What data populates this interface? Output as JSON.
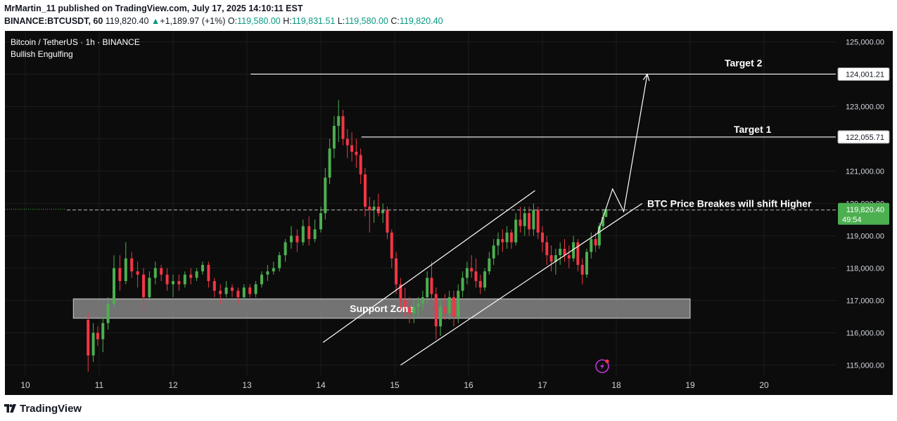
{
  "header": {
    "publisher_line": "MrMartin_11 published on TradingView.com, July 17, 2025 14:10:11 EST",
    "symbol": "BINANCE:BTCUSDT, 60",
    "last": "119,820.40",
    "change": "+1,189.97 (+1%)",
    "o_label": "O:",
    "o": "119,580.00",
    "h_label": "H:",
    "h": "119,831.51",
    "l_label": "L:",
    "l": "119,580.00",
    "c_label": "C:",
    "c": "119,820.40"
  },
  "legend": {
    "title": "Bitcoin / TetherUS · 1h · BINANCE",
    "indicator": "Bullish Engulfing"
  },
  "annotations": {
    "target1": "Target 1",
    "target2": "Target 2",
    "breakout": "BTC Price Breakes will shift Higher",
    "support_zone": "Support Zone"
  },
  "price_tags": {
    "target2": "124,001.21",
    "target1": "122,055.71",
    "last": "119,820.40",
    "countdown": "49:54"
  },
  "footer": {
    "brand": "TradingView"
  },
  "colors": {
    "bull": "#4caf50",
    "bear": "#f23645",
    "background": "#0c0c0c",
    "last_tag": "#4caf50",
    "annotation": "#ffffff"
  },
  "chart_data": {
    "type": "candlestick",
    "ylim": [
      114600,
      125300
    ],
    "y_ticks": [
      115000,
      116000,
      117000,
      118000,
      119000,
      120000,
      121000,
      122000,
      123000,
      124000,
      125000
    ],
    "y_tick_labels": [
      "115,000.00",
      "116,000.00",
      "117,000.00",
      "118,000.00",
      "119,000.00",
      "120,000.00",
      "121,000.00",
      "122,000.00",
      "123,000.00",
      "124,000.00",
      "125,000.00"
    ],
    "x_tick_labels": [
      "10",
      "11",
      "12",
      "13",
      "14",
      "15",
      "16",
      "17",
      "18",
      "19",
      "20"
    ],
    "x_ticks_day": [
      10,
      11,
      12,
      13,
      14,
      15,
      16,
      17,
      18,
      19,
      20
    ],
    "xlim_day": [
      9.75,
      20.6
    ],
    "last_price": 119820.4,
    "target1_price": 122055.71,
    "target2_price": 124001.21,
    "support_zone": {
      "from_day": 10.65,
      "to_day": 19.0,
      "low": 116450,
      "high": 117050
    },
    "channel": {
      "upper": [
        [
          14.03,
          115700
        ],
        [
          16.9,
          120400
        ]
      ],
      "lower": [
        [
          15.08,
          115000
        ],
        [
          18.35,
          120000
        ]
      ]
    },
    "projection_path": [
      [
        17.75,
        119100
      ],
      [
        17.95,
        120450
      ],
      [
        18.1,
        119750
      ],
      [
        18.42,
        124001
      ]
    ],
    "target1_line_from_day": 14.55,
    "target2_line_from_day": 13.05,
    "candles": [
      {
        "day": 10.85,
        "open": 116400,
        "high": 116600,
        "low": 114800,
        "close": 115300
      },
      {
        "day": 10.92,
        "open": 115300,
        "high": 116300,
        "low": 115100,
        "close": 116000
      },
      {
        "day": 10.98,
        "open": 116000,
        "high": 116200,
        "low": 115600,
        "close": 115800
      },
      {
        "day": 11.05,
        "open": 115800,
        "high": 116500,
        "low": 115400,
        "close": 116300
      },
      {
        "day": 11.12,
        "open": 116300,
        "high": 117100,
        "low": 116100,
        "close": 116900
      },
      {
        "day": 11.2,
        "open": 116900,
        "high": 118400,
        "low": 116800,
        "close": 118000
      },
      {
        "day": 11.28,
        "open": 118000,
        "high": 118400,
        "low": 117300,
        "close": 117600
      },
      {
        "day": 11.36,
        "open": 117600,
        "high": 118800,
        "low": 117500,
        "close": 118300
      },
      {
        "day": 11.44,
        "open": 118300,
        "high": 118500,
        "low": 117700,
        "close": 117900
      },
      {
        "day": 11.52,
        "open": 117900,
        "high": 118200,
        "low": 117400,
        "close": 117800
      },
      {
        "day": 11.6,
        "open": 117800,
        "high": 118000,
        "low": 116700,
        "close": 117100
      },
      {
        "day": 11.68,
        "open": 117100,
        "high": 117900,
        "low": 117000,
        "close": 117700
      },
      {
        "day": 11.76,
        "open": 117700,
        "high": 118200,
        "low": 117500,
        "close": 118000
      },
      {
        "day": 11.84,
        "open": 118000,
        "high": 118100,
        "low": 117600,
        "close": 117800
      },
      {
        "day": 11.92,
        "open": 117800,
        "high": 118000,
        "low": 117300,
        "close": 117500
      },
      {
        "day": 12.0,
        "open": 117500,
        "high": 117800,
        "low": 117100,
        "close": 117600
      },
      {
        "day": 12.08,
        "open": 117600,
        "high": 117800,
        "low": 117300,
        "close": 117500
      },
      {
        "day": 12.16,
        "open": 117500,
        "high": 117900,
        "low": 117400,
        "close": 117800
      },
      {
        "day": 12.24,
        "open": 117800,
        "high": 118000,
        "low": 117500,
        "close": 117700
      },
      {
        "day": 12.32,
        "open": 117700,
        "high": 118000,
        "low": 117600,
        "close": 117900
      },
      {
        "day": 12.4,
        "open": 117900,
        "high": 118200,
        "low": 117800,
        "close": 118100
      },
      {
        "day": 12.48,
        "open": 118100,
        "high": 118200,
        "low": 117400,
        "close": 117600
      },
      {
        "day": 12.56,
        "open": 117600,
        "high": 117700,
        "low": 117100,
        "close": 117300
      },
      {
        "day": 12.64,
        "open": 117300,
        "high": 117500,
        "low": 116900,
        "close": 117200
      },
      {
        "day": 12.72,
        "open": 117200,
        "high": 117600,
        "low": 117100,
        "close": 117400
      },
      {
        "day": 12.8,
        "open": 117400,
        "high": 117500,
        "low": 117100,
        "close": 117300
      },
      {
        "day": 12.88,
        "open": 117300,
        "high": 117400,
        "low": 116900,
        "close": 117100
      },
      {
        "day": 12.96,
        "open": 117100,
        "high": 117500,
        "low": 117000,
        "close": 117400
      },
      {
        "day": 13.04,
        "open": 117400,
        "high": 117500,
        "low": 117100,
        "close": 117200
      },
      {
        "day": 13.12,
        "open": 117200,
        "high": 117600,
        "low": 117100,
        "close": 117500
      },
      {
        "day": 13.2,
        "open": 117500,
        "high": 117900,
        "low": 117400,
        "close": 117800
      },
      {
        "day": 13.28,
        "open": 117800,
        "high": 118100,
        "low": 117600,
        "close": 117900
      },
      {
        "day": 13.36,
        "open": 117900,
        "high": 118200,
        "low": 117800,
        "close": 118000
      },
      {
        "day": 13.44,
        "open": 118000,
        "high": 118500,
        "low": 117900,
        "close": 118400
      },
      {
        "day": 13.52,
        "open": 118400,
        "high": 118900,
        "low": 118200,
        "close": 118800
      },
      {
        "day": 13.6,
        "open": 118800,
        "high": 119300,
        "low": 118600,
        "close": 119000
      },
      {
        "day": 13.68,
        "open": 119000,
        "high": 119200,
        "low": 118500,
        "close": 118800
      },
      {
        "day": 13.76,
        "open": 118800,
        "high": 119500,
        "low": 118700,
        "close": 119300
      },
      {
        "day": 13.84,
        "open": 119300,
        "high": 119600,
        "low": 118700,
        "close": 118900
      },
      {
        "day": 13.92,
        "open": 118900,
        "high": 119500,
        "low": 118800,
        "close": 119200
      },
      {
        "day": 14.0,
        "open": 119200,
        "high": 119900,
        "low": 119100,
        "close": 119700
      },
      {
        "day": 14.06,
        "open": 119700,
        "high": 121100,
        "low": 119500,
        "close": 120800
      },
      {
        "day": 14.12,
        "open": 120800,
        "high": 122000,
        "low": 120600,
        "close": 121700
      },
      {
        "day": 14.18,
        "open": 121700,
        "high": 122700,
        "low": 121400,
        "close": 122400
      },
      {
        "day": 14.24,
        "open": 122400,
        "high": 123200,
        "low": 121900,
        "close": 122700
      },
      {
        "day": 14.3,
        "open": 122700,
        "high": 122900,
        "low": 121800,
        "close": 122000
      },
      {
        "day": 14.36,
        "open": 122000,
        "high": 122300,
        "low": 121400,
        "close": 121800
      },
      {
        "day": 14.42,
        "open": 121800,
        "high": 122200,
        "low": 121300,
        "close": 121600
      },
      {
        "day": 14.48,
        "open": 121600,
        "high": 122000,
        "low": 121100,
        "close": 121500
      },
      {
        "day": 14.54,
        "open": 121500,
        "high": 121700,
        "low": 120600,
        "close": 120900
      },
      {
        "day": 14.6,
        "open": 120900,
        "high": 121100,
        "low": 119600,
        "close": 119900
      },
      {
        "day": 14.66,
        "open": 119900,
        "high": 120200,
        "low": 119100,
        "close": 119800
      },
      {
        "day": 14.72,
        "open": 119800,
        "high": 120100,
        "low": 119400,
        "close": 119900
      },
      {
        "day": 14.78,
        "open": 119900,
        "high": 120300,
        "low": 119600,
        "close": 119700
      },
      {
        "day": 14.84,
        "open": 119700,
        "high": 120000,
        "low": 119400,
        "close": 119800
      },
      {
        "day": 14.9,
        "open": 119800,
        "high": 119900,
        "low": 118900,
        "close": 119100
      },
      {
        "day": 14.96,
        "open": 119100,
        "high": 119200,
        "low": 118000,
        "close": 118300
      },
      {
        "day": 15.02,
        "open": 118300,
        "high": 118500,
        "low": 117200,
        "close": 117500
      },
      {
        "day": 15.08,
        "open": 117500,
        "high": 117700,
        "low": 116700,
        "close": 117000
      },
      {
        "day": 15.14,
        "open": 117000,
        "high": 117400,
        "low": 116500,
        "close": 116800
      },
      {
        "day": 15.2,
        "open": 116800,
        "high": 117100,
        "low": 116300,
        "close": 116600
      },
      {
        "day": 15.26,
        "open": 116600,
        "high": 117000,
        "low": 116300,
        "close": 116800
      },
      {
        "day": 15.32,
        "open": 116800,
        "high": 117100,
        "low": 116500,
        "close": 116900
      },
      {
        "day": 15.38,
        "open": 116900,
        "high": 117300,
        "low": 116700,
        "close": 117100
      },
      {
        "day": 15.44,
        "open": 117100,
        "high": 117900,
        "low": 116900,
        "close": 117700
      },
      {
        "day": 15.5,
        "open": 117700,
        "high": 118200,
        "low": 117000,
        "close": 117200
      },
      {
        "day": 15.56,
        "open": 117200,
        "high": 117400,
        "low": 115800,
        "close": 116200
      },
      {
        "day": 15.62,
        "open": 116200,
        "high": 117000,
        "low": 115900,
        "close": 116800
      },
      {
        "day": 15.68,
        "open": 116800,
        "high": 117200,
        "low": 116400,
        "close": 116600
      },
      {
        "day": 15.74,
        "open": 116600,
        "high": 117300,
        "low": 116400,
        "close": 117100
      },
      {
        "day": 15.8,
        "open": 117100,
        "high": 117300,
        "low": 116200,
        "close": 116500
      },
      {
        "day": 15.86,
        "open": 116500,
        "high": 117500,
        "low": 116300,
        "close": 117300
      },
      {
        "day": 15.92,
        "open": 117300,
        "high": 117900,
        "low": 117100,
        "close": 117700
      },
      {
        "day": 15.98,
        "open": 117700,
        "high": 118200,
        "low": 117500,
        "close": 118000
      },
      {
        "day": 16.04,
        "open": 118000,
        "high": 118400,
        "low": 117700,
        "close": 117900
      },
      {
        "day": 16.1,
        "open": 117900,
        "high": 118300,
        "low": 117400,
        "close": 117600
      },
      {
        "day": 16.16,
        "open": 117600,
        "high": 117800,
        "low": 117200,
        "close": 117400
      },
      {
        "day": 16.22,
        "open": 117400,
        "high": 118000,
        "low": 117300,
        "close": 117900
      },
      {
        "day": 16.28,
        "open": 117900,
        "high": 118500,
        "low": 117800,
        "close": 118300
      },
      {
        "day": 16.34,
        "open": 118300,
        "high": 118900,
        "low": 118100,
        "close": 118700
      },
      {
        "day": 16.4,
        "open": 118700,
        "high": 119100,
        "low": 118400,
        "close": 118900
      },
      {
        "day": 16.46,
        "open": 118900,
        "high": 119200,
        "low": 118500,
        "close": 118800
      },
      {
        "day": 16.52,
        "open": 118800,
        "high": 119300,
        "low": 118600,
        "close": 119100
      },
      {
        "day": 16.58,
        "open": 119100,
        "high": 119200,
        "low": 118600,
        "close": 118800
      },
      {
        "day": 16.64,
        "open": 118800,
        "high": 119700,
        "low": 118700,
        "close": 119500
      },
      {
        "day": 16.7,
        "open": 119500,
        "high": 119900,
        "low": 119100,
        "close": 119300
      },
      {
        "day": 16.76,
        "open": 119300,
        "high": 119900,
        "low": 119000,
        "close": 119700
      },
      {
        "day": 16.82,
        "open": 119700,
        "high": 119900,
        "low": 119000,
        "close": 119200
      },
      {
        "day": 16.88,
        "open": 119200,
        "high": 120000,
        "low": 119000,
        "close": 119800
      },
      {
        "day": 16.94,
        "open": 119800,
        "high": 119900,
        "low": 118900,
        "close": 119100
      },
      {
        "day": 17.0,
        "open": 119100,
        "high": 119300,
        "low": 118500,
        "close": 118800
      },
      {
        "day": 17.06,
        "open": 118800,
        "high": 119000,
        "low": 118100,
        "close": 118400
      },
      {
        "day": 17.12,
        "open": 118400,
        "high": 118700,
        "low": 117900,
        "close": 118200
      },
      {
        "day": 17.18,
        "open": 118200,
        "high": 118600,
        "low": 117800,
        "close": 118400
      },
      {
        "day": 17.24,
        "open": 118400,
        "high": 118800,
        "low": 118100,
        "close": 118600
      },
      {
        "day": 17.3,
        "open": 118600,
        "high": 118900,
        "low": 118200,
        "close": 118400
      },
      {
        "day": 17.36,
        "open": 118400,
        "high": 118700,
        "low": 118000,
        "close": 118300
      },
      {
        "day": 17.42,
        "open": 118300,
        "high": 119000,
        "low": 118200,
        "close": 118800
      },
      {
        "day": 17.48,
        "open": 118800,
        "high": 118900,
        "low": 117900,
        "close": 118100
      },
      {
        "day": 17.54,
        "open": 118100,
        "high": 118300,
        "low": 117500,
        "close": 117800
      },
      {
        "day": 17.6,
        "open": 117800,
        "high": 118600,
        "low": 117700,
        "close": 118500
      },
      {
        "day": 17.66,
        "open": 118500,
        "high": 119100,
        "low": 118300,
        "close": 118900
      },
      {
        "day": 17.72,
        "open": 118900,
        "high": 119100,
        "low": 118500,
        "close": 118700
      },
      {
        "day": 17.77,
        "open": 118700,
        "high": 119400,
        "low": 118600,
        "close": 119300
      },
      {
        "day": 17.82,
        "open": 119300,
        "high": 119831.51,
        "low": 119200,
        "close": 119580
      },
      {
        "day": 17.86,
        "open": 119580,
        "high": 119831.51,
        "low": 119580,
        "close": 119820.4
      }
    ]
  }
}
